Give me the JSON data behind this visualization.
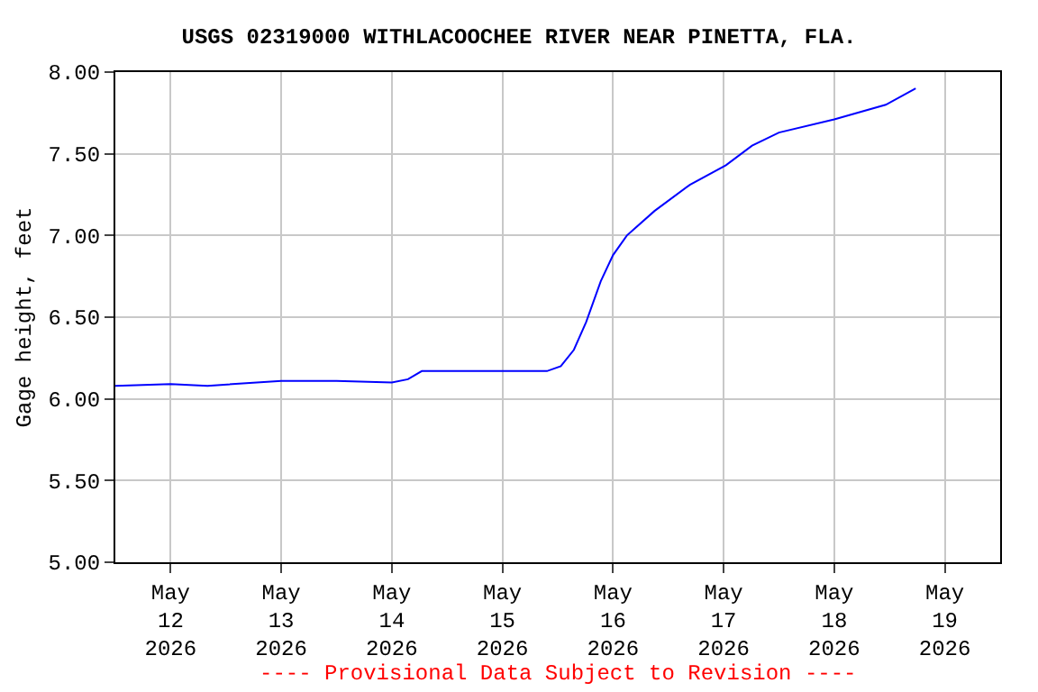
{
  "chart_data": {
    "type": "line",
    "title": "USGS 02319000 WITHLACOOCHEE RIVER NEAR PINETTA, FLA.",
    "ylabel": "Gage height, feet",
    "x": [
      "2026-05-11T12:00",
      "2026-05-12T00:00",
      "2026-05-12T08:00",
      "2026-05-13T00:00",
      "2026-05-13T12:00",
      "2026-05-14T00:00",
      "2026-05-14T03:30",
      "2026-05-14T06:30",
      "2026-05-15T00:00",
      "2026-05-15T09:40",
      "2026-05-15T12:40",
      "2026-05-15T15:30",
      "2026-05-15T18:10",
      "2026-05-15T21:20",
      "2026-05-16T00:00",
      "2026-05-16T03:00",
      "2026-05-16T09:00",
      "2026-05-16T16:40",
      "2026-05-17T00:30",
      "2026-05-17T06:10",
      "2026-05-17T12:00",
      "2026-05-18T00:00",
      "2026-05-18T11:10",
      "2026-05-18T17:40"
    ],
    "series": [
      {
        "color": "#0000ff",
        "values": [
          6.08,
          6.09,
          6.08,
          6.11,
          6.11,
          6.1,
          6.12,
          6.17,
          6.17,
          6.17,
          6.2,
          6.3,
          6.47,
          6.72,
          6.88,
          7.0,
          7.15,
          7.31,
          7.43,
          7.55,
          7.63,
          7.71,
          7.8,
          7.9
        ]
      }
    ],
    "xlim": [
      "2026-05-11T12:00",
      "2026-05-19T12:00"
    ],
    "xticks": [
      {
        "value": "2026-05-12",
        "label": "May\n12\n2026"
      },
      {
        "value": "2026-05-13",
        "label": "May\n13\n2026"
      },
      {
        "value": "2026-05-14",
        "label": "May\n14\n2026"
      },
      {
        "value": "2026-05-15",
        "label": "May\n15\n2026"
      },
      {
        "value": "2026-05-16",
        "label": "May\n16\n2026"
      },
      {
        "value": "2026-05-17",
        "label": "May\n17\n2026"
      },
      {
        "value": "2026-05-18",
        "label": "May\n18\n2026"
      },
      {
        "value": "2026-05-19",
        "label": "May\n19\n2026"
      }
    ],
    "ylim": [
      5,
      8
    ],
    "yticks": [
      {
        "value": 5,
        "label": "5.00"
      },
      {
        "value": 5.5,
        "label": "5.50"
      },
      {
        "value": 6,
        "label": "6.00"
      },
      {
        "value": 6.5,
        "label": "6.50"
      },
      {
        "value": 7,
        "label": "7.00"
      },
      {
        "value": 7.5,
        "label": "7.50"
      },
      {
        "value": 8,
        "label": "8.00"
      }
    ],
    "grid": true,
    "annotations": [
      "---- Provisional Data Subject to Revision ----"
    ]
  }
}
